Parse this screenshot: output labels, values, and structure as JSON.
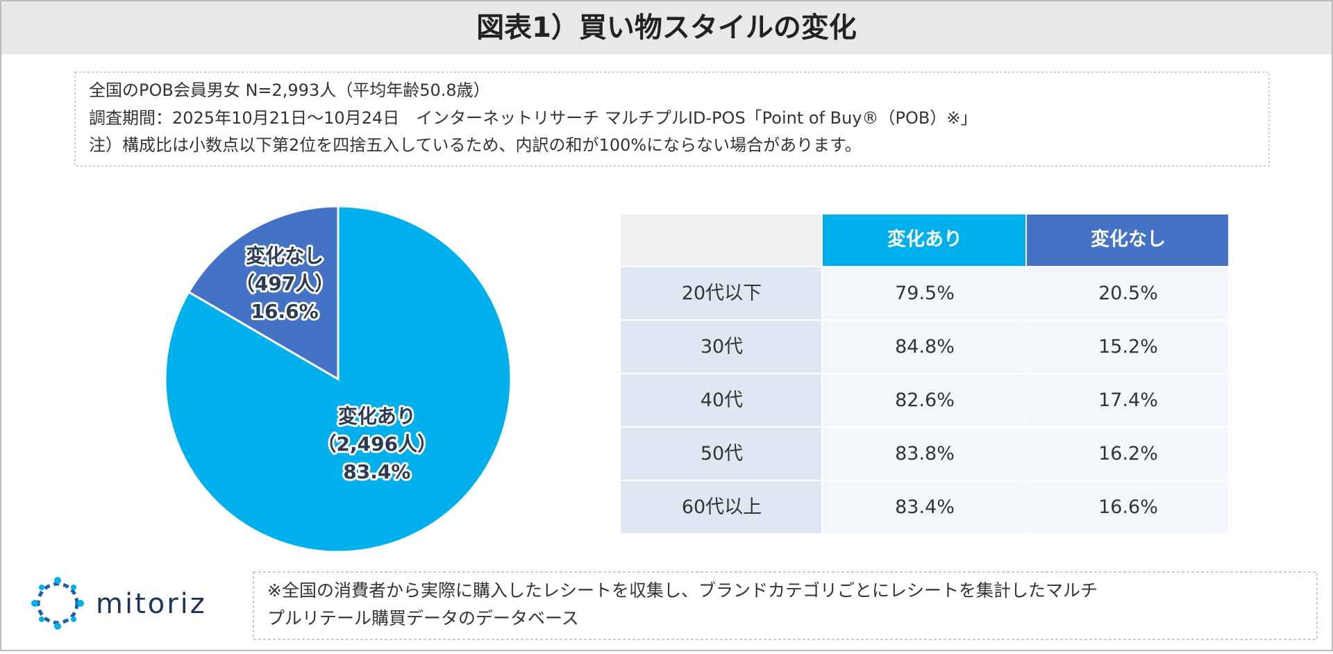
{
  "title": "図表1）買い物スタイルの変化",
  "notes": [
    "全国のPOB会員男女 N=2,993人（平均年齢50.8歳）",
    "調査期間：2025年10月21日～10月24日　インターネットリサーチ マルチプルID-POS「Point of Buy®（POB）※」",
    "注）構成比は小数点以下第2位を四捨五入しているため、内訳の和が100%にならない場合があります。"
  ],
  "chart_data": {
    "type": "pie",
    "categories": [
      "変化あり",
      "変化なし"
    ],
    "count_labels": [
      "（2,496人）",
      "（497人）"
    ],
    "values": [
      83.4,
      16.6
    ],
    "value_labels": [
      "83.4%",
      "16.6%"
    ],
    "colors": [
      "#00b0ec",
      "#4472c4"
    ]
  },
  "table": {
    "columns": [
      "",
      "変化あり",
      "変化なし"
    ],
    "rows": [
      [
        "20代以下",
        "79.5%",
        "20.5%"
      ],
      [
        "30代",
        "84.8%",
        "15.2%"
      ],
      [
        "40代",
        "82.6%",
        "17.4%"
      ],
      [
        "50代",
        "83.8%",
        "16.2%"
      ],
      [
        "60代以上",
        "83.4%",
        "16.6%"
      ]
    ]
  },
  "footer": {
    "logo": "mitoriz",
    "note": [
      "※全国の消費者から実際に購入したレシートを収集し、ブランドカテゴリごとにレシートを集計したマルチ",
      "プルリテール購買データのデータベース"
    ]
  }
}
